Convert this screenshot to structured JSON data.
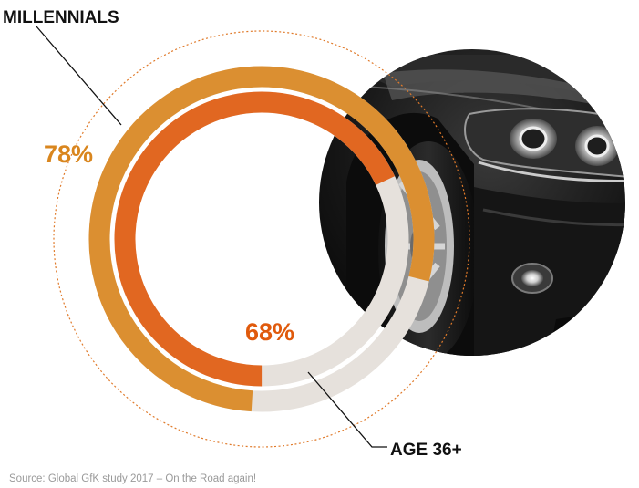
{
  "chart_data": {
    "type": "donut",
    "series": [
      {
        "name": "MILLENNIALS",
        "value_percent": 78,
        "value_label": "78%",
        "color": "#d9861e"
      },
      {
        "name": "AGE 36+",
        "value_percent": 68,
        "value_label": "68%",
        "color": "#e05a0c"
      }
    ],
    "track_color": "#e6e1dc",
    "guide_circle_color": "#e07a2a",
    "source": "Source: Global GfK study 2017 – On the Road again!"
  },
  "image": {
    "icon": "car-headlight-photo"
  }
}
